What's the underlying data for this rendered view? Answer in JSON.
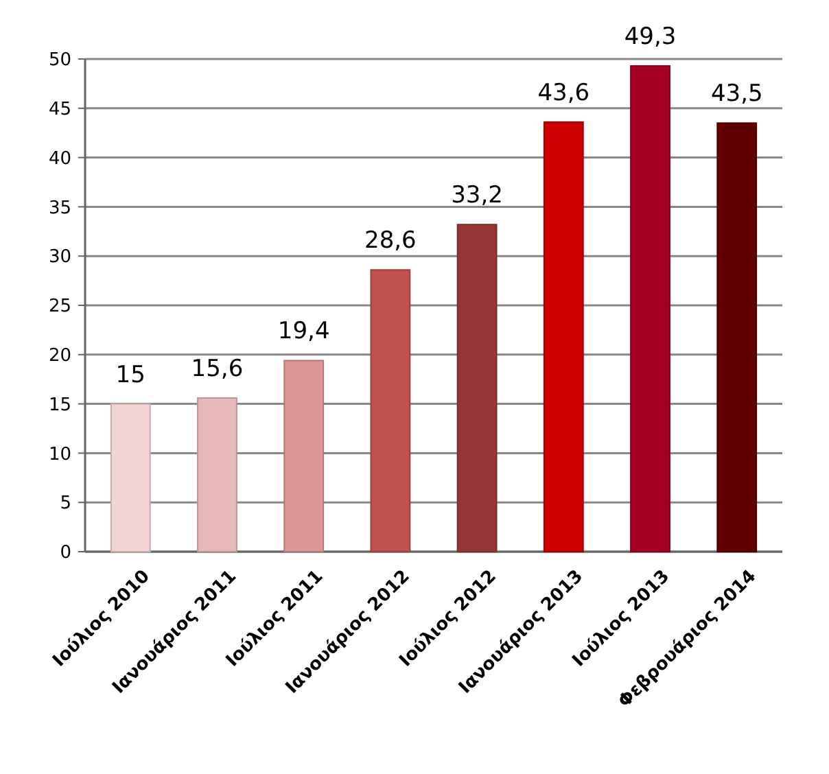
{
  "chart_data": {
    "type": "bar",
    "categories": [
      "Ιούλιος 2010",
      "Ιανουάριος 2011",
      "Ιούλιος 2011",
      "Ιανουάριος 2012",
      "Ιούλιος 2012",
      "Ιανουάριος 2013",
      "Ιούλιος 2013",
      "Φεβρουάριος 2014"
    ],
    "values": [
      15,
      15.6,
      19.4,
      28.6,
      33.2,
      43.6,
      49.3,
      43.5
    ],
    "value_labels": [
      "15",
      "15,6",
      "19,4",
      "28,6",
      "33,2",
      "43,6",
      "49,3",
      "43,5"
    ],
    "colors": [
      "#f2d4d4",
      "#e6b9b8",
      "#d99694",
      "#c0504d",
      "#953735",
      "#cc0000",
      "#a50021",
      "#600000"
    ],
    "ylim": [
      0,
      50
    ],
    "yticks": [
      0,
      5,
      10,
      15,
      20,
      25,
      30,
      35,
      40,
      45,
      50
    ],
    "grid": "y"
  }
}
